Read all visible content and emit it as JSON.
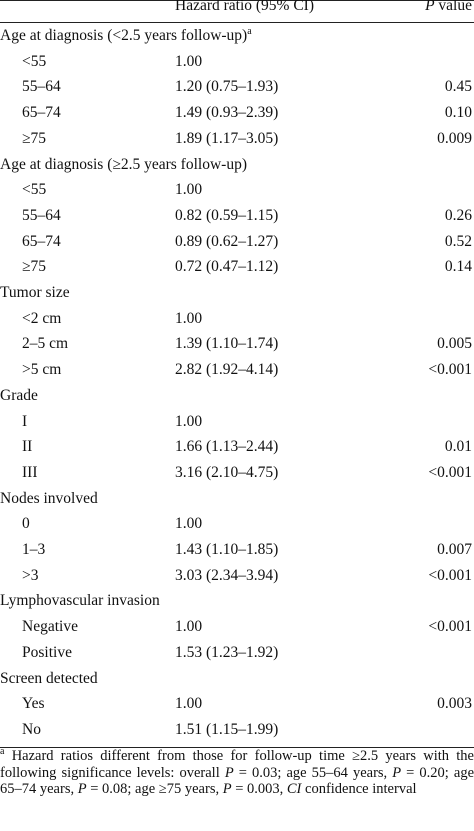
{
  "header": {
    "hazard_ratio": "Hazard ratio (95% CI)",
    "p_value": {
      "italic": "P",
      "rest": "value"
    }
  },
  "sections": [
    {
      "title": "Age at diagnosis (<2.5 years follow-up)",
      "sup": "a",
      "rows": [
        [
          "<55",
          "1.00"
        ],
        [
          "55–64",
          "1.20 (0.75–1.93)",
          "0.45"
        ],
        [
          "65–74",
          "1.49 (0.93–2.39)",
          "0.10"
        ],
        [
          "≥75",
          "1.89 (1.17–3.05)",
          "0.009"
        ]
      ]
    },
    {
      "title": "Age at diagnosis (≥2.5 years follow-up)",
      "rows": [
        [
          "<55",
          "1.00"
        ],
        [
          "55–64",
          "0.82 (0.59–1.15)",
          "0.26"
        ],
        [
          "65–74",
          "0.89 (0.62–1.27)",
          "0.52"
        ],
        [
          "≥75",
          "0.72 (0.47–1.12)",
          "0.14"
        ]
      ]
    },
    {
      "title": "Tumor size",
      "rows": [
        [
          "<2 cm",
          "1.00"
        ],
        [
          "2–5 cm",
          "1.39 (1.10–1.74)",
          "0.005"
        ],
        [
          ">5 cm",
          "2.82 (1.92–4.14)",
          "<0.001"
        ]
      ]
    },
    {
      "title": "Grade",
      "rows": [
        [
          "I",
          "1.00"
        ],
        [
          "II",
          "1.66 (1.13–2.44)",
          "0.01"
        ],
        [
          "III",
          "3.16 (2.10–4.75)",
          "<0.001"
        ]
      ]
    },
    {
      "title": "Nodes involved",
      "rows": [
        [
          "0",
          "1.00"
        ],
        [
          "1–3",
          "1.43 (1.10–1.85)",
          "0.007"
        ],
        [
          ">3",
          "3.03 (2.34–3.94)",
          "<0.001"
        ]
      ]
    },
    {
      "title": "Lymphovascular invasion",
      "rows": [
        [
          "Negative",
          "1.00",
          "<0.001"
        ],
        [
          "Positive",
          "1.53 (1.23–1.92)"
        ]
      ]
    },
    {
      "title": "Screen detected",
      "rows": [
        [
          "Yes",
          "1.00",
          "0.003"
        ],
        [
          "No",
          "1.51 (1.15–1.99)"
        ]
      ]
    }
  ],
  "footnote": {
    "sup": "a",
    "segments": [
      {
        "text": " Hazard ratios different from those for follow-up time ≥2.5 years with the following significance levels: overall "
      },
      {
        "text": "P",
        "italic": true
      },
      {
        "text": " = 0.03; age 55–64 years, "
      },
      {
        "text": "P",
        "italic": true
      },
      {
        "text": " = 0.20; age 65–74 years, "
      },
      {
        "text": "P",
        "italic": true
      },
      {
        "text": " = 0.08; age ≥75 years, "
      },
      {
        "text": "P",
        "italic": true
      },
      {
        "text": " = 0.003, "
      },
      {
        "text": "CI",
        "italic": true
      },
      {
        "text": " confidence interval"
      }
    ]
  }
}
